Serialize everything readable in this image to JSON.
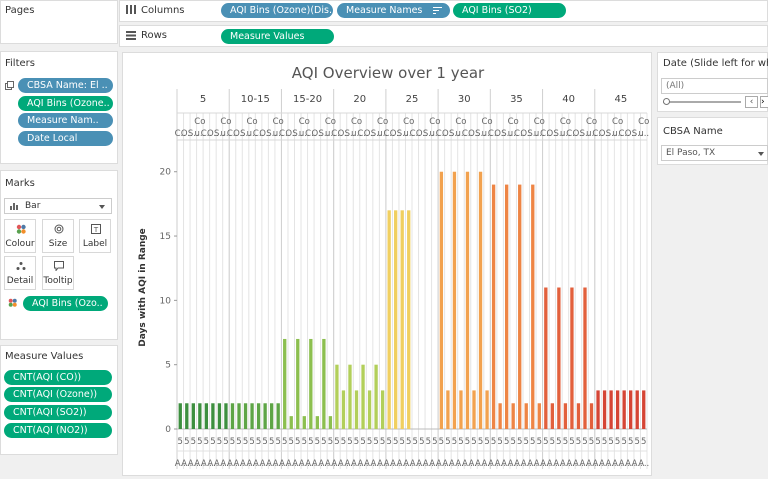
{
  "shelves": {
    "pages_label": "Pages",
    "columns_label": "Columns",
    "rows_label": "Rows",
    "columns_pills": [
      "AQI Bins (Ozone)(Dis..",
      "Measure Names",
      "AQI Bins (SO2)"
    ],
    "rows_pills": [
      "Measure Values"
    ]
  },
  "filters": {
    "title": "Filters",
    "items": [
      "CBSA Name: El ..",
      "AQI Bins (Ozone..",
      "Measure Nam..",
      "Date Local"
    ]
  },
  "marks": {
    "title": "Marks",
    "type": "Bar",
    "buttons": [
      "Colour",
      "Size",
      "Label",
      "Detail",
      "Tooltip"
    ],
    "color_pill": "AQI Bins (Ozo.."
  },
  "measure_values": {
    "title": "Measure Values",
    "items": [
      "CNT(AQI (CO))",
      "CNT(AQI (Ozone))",
      "CNT(AQI (SO2))",
      "CNT(AQI (NO2))"
    ]
  },
  "date_filter": {
    "title": "Date (Slide left for whol..",
    "value": "(All)"
  },
  "cbsa_filter": {
    "title": "CBSA Name",
    "value": "El Paso, TX"
  },
  "chart_data": {
    "type": "bar",
    "title": "AQI Overview over 1 year",
    "ylabel": "Days with AQI in Range",
    "ylim": [
      0,
      22
    ],
    "yticks": [
      0,
      5,
      10,
      15,
      20
    ],
    "groups": [
      "5",
      "10-15",
      "15-20",
      "20",
      "25",
      "30",
      "35",
      "40",
      "45"
    ],
    "subheaders": [
      [
        "C..",
        "O..",
        "S..",
        "Co u.."
      ],
      [
        "C..",
        "O..",
        "S..",
        "Co u.."
      ],
      [
        "C..",
        "O..",
        "S..",
        "Co u.."
      ],
      [
        "C..",
        "O..",
        "S..",
        "Co u.."
      ],
      [
        "C..",
        "O..",
        "S..",
        "Co u.."
      ],
      [
        "C..",
        "O..",
        "S..",
        "Co u.."
      ],
      [
        "C..",
        "O..",
        "S..",
        "Co u.."
      ],
      [
        "C..",
        "O..",
        "S..",
        "Co u.."
      ],
      [
        "C..",
        "O..",
        "S..",
        "Co u.."
      ]
    ],
    "series": [
      {
        "values": [
          [
            2,
            2,
            2,
            2
          ],
          [
            2,
            2,
            2,
            2
          ],
          [
            7,
            1,
            7,
            1
          ],
          [
            5,
            3,
            5,
            3
          ],
          [
            17,
            17,
            17,
            17
          ],
          [
            20,
            3,
            20,
            3
          ],
          [
            19,
            2,
            19,
            2
          ],
          [
            11,
            2,
            11,
            2
          ],
          [
            3,
            3,
            3,
            3
          ]
        ]
      },
      {
        "values": [
          [
            2,
            2,
            2,
            2
          ],
          [
            2,
            2,
            2,
            2
          ],
          [
            7,
            1,
            7,
            1
          ],
          [
            5,
            3,
            5,
            3
          ],
          [
            0,
            0,
            0,
            0
          ],
          [
            20,
            3,
            20,
            3
          ],
          [
            19,
            2,
            19,
            2
          ],
          [
            11,
            2,
            11,
            2
          ],
          [
            3,
            3,
            3,
            3
          ]
        ]
      }
    ],
    "group_colors": [
      "#3d8f3f",
      "#5ea546",
      "#8cbf4f",
      "#b2cf5a",
      "#f0cf60",
      "#f2a24f",
      "#ee8545",
      "#e2603c",
      "#d54535"
    ],
    "bottom_row1": "5",
    "bottom_row2": "A.."
  }
}
